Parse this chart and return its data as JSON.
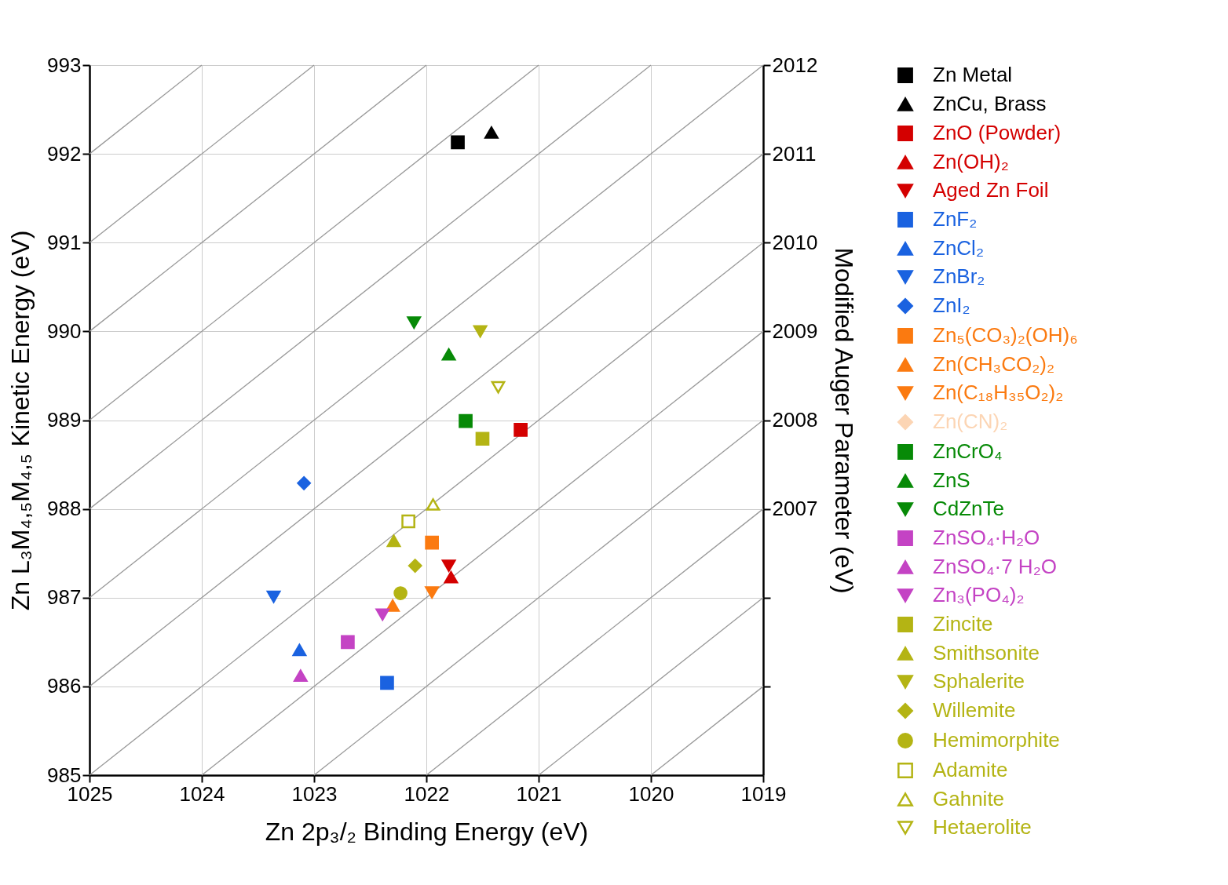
{
  "chart_data": {
    "type": "scatter",
    "xlabel": "Zn 2p₃/₂ Binding Energy (eV)",
    "ylabel": "Zn L₃M₄,₅M₄,₅ Kinetic Energy (eV)",
    "y2label": "Modified Auger Parameter (eV)",
    "xlim": [
      1025,
      1019
    ],
    "xticks": [
      1025,
      1024,
      1023,
      1022,
      1021,
      1020,
      1019
    ],
    "ylim": [
      985,
      993
    ],
    "yticks": [
      985,
      986,
      987,
      988,
      989,
      990,
      991,
      992,
      993
    ],
    "y2lim": [
      2004,
      2012
    ],
    "y2ticks": [
      {
        "value": 2005,
        "label": null
      },
      {
        "value": 2006,
        "label": null
      },
      2007,
      2008,
      2009,
      2010,
      2011,
      2012
    ],
    "grid": true,
    "legend": "right",
    "series": [
      {
        "name": "Zn Metal",
        "color": "#000000",
        "marker": "square",
        "x": [
          1021.72
        ],
        "values": [
          992.13
        ]
      },
      {
        "name": "ZnCu, Brass",
        "color": "#000000",
        "marker": "triangle",
        "x": [
          1021.42
        ],
        "values": [
          992.24
        ]
      },
      {
        "name": "ZnO (Powder)",
        "color": "#d40000",
        "marker": "square",
        "x": [
          1021.16
        ],
        "values": [
          988.89
        ]
      },
      {
        "name": "Zn(OH)₂",
        "color": "#d40000",
        "marker": "triangle",
        "x": [
          1021.78
        ],
        "values": [
          987.23
        ]
      },
      {
        "name": "Aged Zn Foil",
        "color": "#d40000",
        "marker": "triangle-down",
        "x": [
          1021.8
        ],
        "values": [
          987.36
        ]
      },
      {
        "name": "ZnF₂",
        "color": "#1a62e0",
        "marker": "square",
        "x": [
          1022.35
        ],
        "values": [
          986.04
        ]
      },
      {
        "name": "ZnCl₂",
        "color": "#1a62e0",
        "marker": "triangle",
        "x": [
          1023.13
        ],
        "values": [
          986.41
        ]
      },
      {
        "name": "ZnBr₂",
        "color": "#1a62e0",
        "marker": "triangle-down",
        "x": [
          1023.36
        ],
        "values": [
          987.01
        ]
      },
      {
        "name": "ZnI₂",
        "color": "#1a62e0",
        "marker": "diamond",
        "x": [
          1023.09
        ],
        "values": [
          988.29
        ]
      },
      {
        "name": "Zn₅(CO₃)₂(OH)₆",
        "color": "#fb7a10",
        "marker": "square",
        "x": [
          1021.95
        ],
        "values": [
          987.62
        ]
      },
      {
        "name": "Zn(CH₃CO₂)₂",
        "color": "#fb7a10",
        "marker": "triangle",
        "x": [
          1022.3
        ],
        "values": [
          986.91
        ]
      },
      {
        "name": "Zn(C₁₈H₃₅O₂)₂",
        "color": "#fb7a10",
        "marker": "triangle-down",
        "x": [
          1021.95
        ],
        "values": [
          987.06
        ]
      },
      {
        "name": "Zn(CN)₂",
        "color": "#fcd5b4",
        "marker": "diamond"
      },
      {
        "name": "ZnCrO₄",
        "color": "#078a07",
        "marker": "square",
        "x": [
          1021.65
        ],
        "values": [
          988.99
        ]
      },
      {
        "name": "ZnS",
        "color": "#078a07",
        "marker": "triangle",
        "x": [
          1021.8
        ],
        "values": [
          989.74
        ]
      },
      {
        "name": "CdZnTe",
        "color": "#078a07",
        "marker": "triangle-down",
        "x": [
          1022.11
        ],
        "values": [
          990.1
        ]
      },
      {
        "name": "ZnSO₄·H₂O",
        "color": "#c443c4",
        "marker": "square",
        "x": [
          1022.7
        ],
        "values": [
          986.5
        ]
      },
      {
        "name": "ZnSO₄·7 H₂O",
        "color": "#c443c4",
        "marker": "triangle",
        "x": [
          1023.12
        ],
        "values": [
          986.12
        ]
      },
      {
        "name": "Zn₃(PO₄)₂",
        "color": "#c443c4",
        "marker": "triangle-down",
        "x": [
          1022.39
        ],
        "values": [
          986.81
        ]
      },
      {
        "name": "Zincite",
        "color": "#b4b414",
        "marker": "square",
        "x": [
          1021.5
        ],
        "values": [
          988.79
        ]
      },
      {
        "name": "Smithsonite",
        "color": "#b4b414",
        "marker": "triangle",
        "x": [
          1022.29
        ],
        "values": [
          987.64
        ]
      },
      {
        "name": "Sphalerite",
        "color": "#b4b414",
        "marker": "triangle-down",
        "x": [
          1021.52
        ],
        "values": [
          990.0
        ]
      },
      {
        "name": "Willemite",
        "color": "#b4b414",
        "marker": "diamond",
        "x": [
          1022.1
        ],
        "values": [
          987.36
        ]
      },
      {
        "name": "Hemimorphite",
        "color": "#b4b414",
        "marker": "circle",
        "x": [
          1022.23
        ],
        "values": [
          987.05
        ]
      },
      {
        "name": "Adamite",
        "color": "#b4b414",
        "marker": "square-open",
        "x": [
          1022.16
        ],
        "values": [
          987.86
        ]
      },
      {
        "name": "Gahnite",
        "color": "#b4b414",
        "marker": "triangle-open",
        "x": [
          1021.94
        ],
        "values": [
          988.05
        ]
      },
      {
        "name": "Hetaerolite",
        "color": "#b4b414",
        "marker": "triangle-down-open",
        "x": [
          1021.36
        ],
        "values": [
          989.37
        ]
      },
      {
        "type": "line",
        "color": "#999999",
        "x": [
          1020,
          1019
        ],
        "values": [
          985,
          986
        ]
      },
      {
        "type": "line",
        "color": "#999999",
        "x": [
          1021,
          1019
        ],
        "values": [
          985,
          987
        ]
      },
      {
        "type": "line",
        "color": "#999999",
        "x": [
          1022,
          1019
        ],
        "values": [
          985,
          988
        ]
      },
      {
        "type": "line",
        "color": "#999999",
        "x": [
          1023,
          1019
        ],
        "values": [
          985,
          989
        ]
      },
      {
        "type": "line",
        "color": "#999999",
        "x": [
          1024,
          1019
        ],
        "values": [
          985,
          990
        ]
      },
      {
        "type": "line",
        "color": "#999999",
        "x": [
          1025,
          1019
        ],
        "values": [
          985,
          991
        ]
      },
      {
        "type": "line",
        "color": "#999999",
        "x": [
          1025,
          1019
        ],
        "values": [
          986,
          992
        ]
      },
      {
        "type": "line",
        "color": "#999999",
        "x": [
          1025,
          1019
        ],
        "values": [
          987,
          993
        ]
      },
      {
        "type": "line",
        "color": "#999999",
        "x": [
          1025,
          1020
        ],
        "values": [
          988,
          993
        ]
      },
      {
        "type": "line",
        "color": "#999999",
        "x": [
          1025,
          1021
        ],
        "values": [
          989,
          993
        ]
      },
      {
        "type": "line",
        "color": "#999999",
        "x": [
          1025,
          1022
        ],
        "values": [
          990,
          993
        ]
      },
      {
        "type": "line",
        "color": "#999999",
        "x": [
          1025,
          1023
        ],
        "values": [
          991,
          993
        ]
      },
      {
        "type": "line",
        "color": "#999999",
        "x": [
          1025,
          1024
        ],
        "values": [
          992,
          993
        ]
      }
    ]
  }
}
